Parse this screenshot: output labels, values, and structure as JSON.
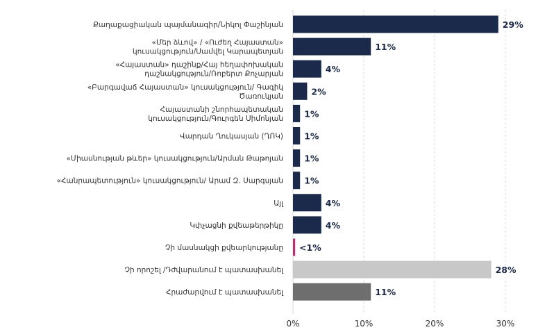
{
  "chart_data": {
    "type": "bar",
    "orientation": "horizontal",
    "categories": [
      "Քաղաքացիական պայմանագիր/Նիկոլ Փաշինյան",
      "«Մեր ձևով» / «Ուժեղ Հայաստան» կուսակցություն/Սամվել Կարապետյան",
      "«Հայաստան» դաշինք/Հայ հեղափոխական դաշնակցություն/Ռոբերտ Քոչարյան",
      "«Բարգավաճ Հայաստան» կուսակցություն/ Գագիկ Ծառուկյան",
      "Հայաստանի շնորհապետական կուսակցություն/Գուրգեն Սիմոնյան",
      "Վարդան Ղուկասյան (ՂՈԿ)",
      "«Միասնության թևեր» կուսակցություն/Արման Թաթոյան",
      "«Հանրապետություն» կուսակցություն/ Արամ Զ. Սարգսյան",
      "Այլ",
      "Կփչացնի քվեաթերթիկը",
      "Չի մասնակցի քվեարկությանը",
      "Չի որոշել /Դժվարանում է պատասխանել",
      "Հրաժարվում է պատասխանել"
    ],
    "values": [
      29,
      11,
      4,
      2,
      1,
      1,
      1,
      1,
      4,
      4,
      0.3,
      28,
      11
    ],
    "data_labels": [
      "29%",
      "11%",
      "4%",
      "2%",
      "1%",
      "1%",
      "1%",
      "1%",
      "4%",
      "4%",
      "<1%",
      "28%",
      "11%"
    ],
    "bar_colors": [
      "#1b2a4a",
      "#1b2a4a",
      "#1b2a4a",
      "#1b2a4a",
      "#1b2a4a",
      "#1b2a4a",
      "#1b2a4a",
      "#1b2a4a",
      "#1b2a4a",
      "#1b2a4a",
      "#b8336a",
      "#c8c8c8",
      "#6e6e6e"
    ],
    "x_ticks": [
      "0%",
      "10%",
      "20%",
      "30%"
    ],
    "x_tick_values": [
      0,
      10,
      20,
      30
    ],
    "xlim": [
      0,
      35
    ],
    "grid": "vertical",
    "title": "",
    "xlabel": "",
    "ylabel": ""
  }
}
